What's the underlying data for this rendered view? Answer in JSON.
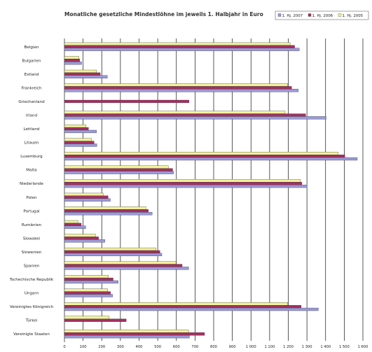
{
  "chart_data": {
    "type": "bar",
    "orientation": "horizontal",
    "title": "Monatliche gesetzliche Mindestlöhne im jeweils 1. Halbjahr in Euro",
    "categories": [
      "Belgien",
      "Bulgarien",
      "Estland",
      "Frankreich",
      "Griechenland",
      "Irland",
      "Lettland",
      "Litauen",
      "Luxemburg",
      "Malta",
      "Niederlande",
      "Polen",
      "Portugal",
      "Rumänien",
      "Slowakei",
      "Slowenien",
      "Spanien",
      "Tschechische Republik",
      "Ungarn",
      "Vereinigtes Königreich",
      "Türkei",
      "Vereinigte Staaten"
    ],
    "series": [
      {
        "name": "1. Hj. 2005",
        "color": "#f2f29a",
        "values": [
          1210,
          77,
          172,
          1197,
          null,
          1183,
          116,
          145,
          1467,
          557,
          1265,
          208,
          437,
          72,
          167,
          490,
          599,
          235,
          232,
          1197,
          240,
          666
        ]
      },
      {
        "name": "1. Hj. 2006",
        "color": "#a33060",
        "values": [
          1234,
          82,
          192,
          1218,
          668,
          1293,
          129,
          159,
          1503,
          580,
          1273,
          234,
          450,
          90,
          183,
          512,
          631,
          261,
          247,
          1269,
          331,
          751
        ]
      },
      {
        "name": "1. Hj. 2007",
        "color": "#9a9ad8",
        "values": [
          1259,
          92,
          230,
          1254,
          null,
          1403,
          172,
          174,
          1570,
          585,
          1301,
          246,
          470,
          114,
          217,
          522,
          666,
          288,
          258,
          1361,
          null,
          670
        ]
      }
    ],
    "legend_order": [
      "1. Hj. 2007",
      "1. Hj. 2006",
      "1. Hj. 2005"
    ],
    "xlim": [
      0,
      1600
    ],
    "xticks": [
      0,
      100,
      200,
      300,
      400,
      500,
      600,
      700,
      800,
      900,
      1000,
      1100,
      1200,
      1300,
      1400,
      1500,
      1600
    ],
    "xtick_labels": [
      "0",
      "100",
      "200",
      "300",
      "400",
      "500",
      "600",
      "700",
      "800",
      "900",
      "1 000",
      "1 100",
      "1 200",
      "1 300",
      "1 400",
      "1 500",
      "1 600"
    ],
    "grid": "vertical",
    "legend_position": "top-right",
    "xlabel": "",
    "ylabel": ""
  }
}
